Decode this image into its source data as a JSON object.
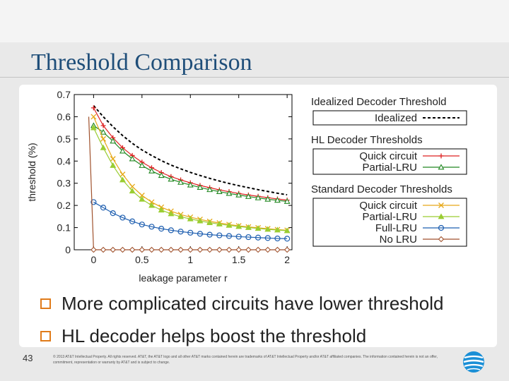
{
  "slide": {
    "title": "Threshold Comparison",
    "page_number": "43",
    "copyright": "© 2013 AT&T Intellectual Property. All rights reserved. AT&T, the AT&T logo and all other AT&T marks contained herein are trademarks of AT&T Intellectual Property and/or AT&T affiliated companies. The information contained herein is not an offer, commitment, representation or warranty by AT&T and is subject to change.",
    "bullets": [
      "More complicated circuits have lower threshold",
      "HL decoder helps boost the threshold"
    ]
  },
  "chart_data": {
    "type": "line",
    "xlabel": "leakage parameter r",
    "ylabel": "threshold (%)",
    "xlim": [
      -0.2,
      2.05
    ],
    "ylim": [
      0,
      0.7
    ],
    "x_ticks": [
      "0",
      "0.5",
      "1",
      "1.5",
      "2"
    ],
    "y_ticks": [
      "0",
      "0.1",
      "0.2",
      "0.3",
      "0.4",
      "0.5",
      "0.6",
      "0.7"
    ],
    "legend_groups": [
      {
        "heading": "Idealized Decoder Threshold",
        "entries": [
          0
        ]
      },
      {
        "heading": "HL Decoder Thresholds",
        "entries": [
          1,
          2
        ]
      },
      {
        "heading": "Standard Decoder Thresholds",
        "entries": [
          3,
          4,
          5,
          6
        ]
      }
    ],
    "x": [
      0,
      0.1,
      0.2,
      0.3,
      0.4,
      0.5,
      0.6,
      0.7,
      0.8,
      0.9,
      1.0,
      1.1,
      1.2,
      1.3,
      1.4,
      1.5,
      1.6,
      1.7,
      1.8,
      1.9,
      2.0
    ],
    "series": [
      {
        "name": "Idealized",
        "color": "#000000",
        "marker": "none",
        "dashed": true,
        "values": [
          0.65,
          0.6,
          0.555,
          0.515,
          0.48,
          0.45,
          0.425,
          0.402,
          0.382,
          0.365,
          0.349,
          0.335,
          0.322,
          0.31,
          0.299,
          0.289,
          0.28,
          0.271,
          0.263,
          0.255,
          0.248
        ]
      },
      {
        "name": "Quick circuit",
        "color": "#dd2222",
        "marker": "plus",
        "dashed": false,
        "values": [
          0.64,
          0.56,
          0.505,
          0.46,
          0.425,
          0.395,
          0.37,
          0.348,
          0.33,
          0.315,
          0.302,
          0.29,
          0.28,
          0.27,
          0.262,
          0.254,
          0.247,
          0.241,
          0.235,
          0.229,
          0.224
        ]
      },
      {
        "name": "Partial-LRU",
        "color": "#228822",
        "marker": "triangle-open",
        "dashed": false,
        "values": [
          0.56,
          0.53,
          0.49,
          0.445,
          0.41,
          0.38,
          0.355,
          0.335,
          0.318,
          0.304,
          0.292,
          0.281,
          0.271,
          0.262,
          0.254,
          0.247,
          0.24,
          0.234,
          0.228,
          0.223,
          0.218
        ]
      },
      {
        "name": "Quick circuit",
        "color": "#e6a817",
        "marker": "x",
        "dashed": false,
        "values": [
          0.6,
          0.5,
          0.41,
          0.34,
          0.285,
          0.245,
          0.215,
          0.192,
          0.174,
          0.159,
          0.147,
          0.137,
          0.128,
          0.121,
          0.114,
          0.108,
          0.103,
          0.099,
          0.095,
          0.091,
          0.088
        ]
      },
      {
        "name": "Partial-LRU",
        "color": "#9acd32",
        "marker": "triangle-filled",
        "dashed": false,
        "values": [
          0.55,
          0.46,
          0.38,
          0.315,
          0.265,
          0.228,
          0.2,
          0.179,
          0.162,
          0.149,
          0.139,
          0.13,
          0.122,
          0.116,
          0.11,
          0.105,
          0.1,
          0.096,
          0.092,
          0.089,
          0.086
        ]
      },
      {
        "name": "Full-LRU",
        "color": "#1f5fb0",
        "marker": "circle-open",
        "dashed": false,
        "values": [
          0.215,
          0.19,
          0.165,
          0.145,
          0.128,
          0.114,
          0.104,
          0.095,
          0.088,
          0.082,
          0.077,
          0.072,
          0.068,
          0.065,
          0.062,
          0.059,
          0.057,
          0.055,
          0.053,
          0.051,
          0.05
        ]
      },
      {
        "name": "No LRU",
        "color": "#a0522d",
        "marker": "diamond-open",
        "dashed": false,
        "segment_x": [
          -0.05,
          0,
          0.1,
          0.2,
          0.3,
          0.4,
          0.5,
          0.6,
          0.7,
          0.8,
          0.9,
          1.0,
          1.1,
          1.2,
          1.3,
          1.4,
          1.5,
          1.6,
          1.7,
          1.8,
          1.9,
          2.0
        ],
        "segment_values": [
          0.6,
          0,
          0,
          0,
          0,
          0,
          0,
          0,
          0,
          0,
          0,
          0,
          0,
          0,
          0,
          0,
          0,
          0,
          0,
          0,
          0,
          0
        ]
      }
    ]
  }
}
